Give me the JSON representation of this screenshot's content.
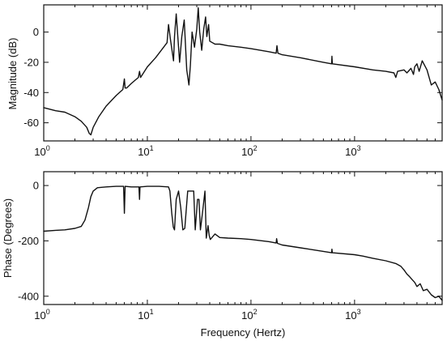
{
  "chart_data": [
    {
      "type": "line",
      "title": "",
      "xlabel": "",
      "ylabel": "Magnitude  (dB)",
      "xscale": "log",
      "xlim": [
        1,
        7000
      ],
      "ylim": [
        -72,
        18
      ],
      "x_ticks": [
        1,
        10,
        100,
        1000
      ],
      "x_tick_labels": [
        {
          "base": "10",
          "exp": "0"
        },
        {
          "base": "10",
          "exp": "1"
        },
        {
          "base": "10",
          "exp": "2"
        },
        {
          "base": "10",
          "exp": "3"
        }
      ],
      "y_ticks": [
        0,
        -20,
        -40,
        -60
      ],
      "y_tick_labels": [
        "0",
        "-20",
        "-40",
        "-60"
      ],
      "grid": false,
      "series": [
        {
          "x": [
            1,
            1.3,
            1.6,
            2.0,
            2.3,
            2.6,
            2.75,
            2.85,
            3.0,
            3.4,
            4.0,
            5.0,
            5.8,
            6.0,
            6.1,
            6.3,
            7.0,
            8.2,
            8.4,
            8.6,
            10.0,
            12.0,
            14.0,
            15.5,
            16.0,
            16.7,
            17.3,
            17.9,
            18.3,
            19.0,
            20.0,
            20.5,
            21.5,
            22.7,
            24.0,
            25.2,
            26.0,
            27.0,
            28.5,
            30.0,
            31.0,
            32.0,
            33.5,
            35.0,
            36.5,
            37.5,
            39.0,
            40.0,
            45.0,
            50.0,
            60.0,
            80.0,
            100,
            150,
            175,
            178,
            182,
            200,
            300,
            500,
            600,
            605,
            610,
            1000,
            1500,
            2000,
            2400,
            2500,
            2600,
            3000,
            3200,
            3500,
            3700,
            3800,
            4000,
            4200,
            4500,
            5000,
            5500,
            6000,
            6500,
            7000
          ],
          "y": [
            -50,
            -52,
            -53,
            -56,
            -59,
            -63,
            -67,
            -68,
            -63,
            -56,
            -49,
            -42,
            -38,
            -31,
            -37,
            -37,
            -34,
            -30,
            -26,
            -30,
            -23,
            -17,
            -11,
            -7,
            5,
            -5,
            -12,
            -19,
            -3,
            12,
            -10,
            -20,
            -3,
            8,
            -25,
            -35,
            -22,
            0,
            -10,
            2,
            16,
            0,
            -12,
            2,
            10,
            -3,
            5,
            -6,
            -8,
            -8,
            -9,
            -10,
            -11,
            -13,
            -14,
            -9,
            -14,
            -15,
            -17,
            -20,
            -21,
            -16,
            -21,
            -23,
            -25,
            -26,
            -27,
            -30,
            -26,
            -25,
            -27,
            -24,
            -28,
            -23,
            -21,
            -26,
            -19,
            -25,
            -35,
            -33,
            -38,
            -45
          ]
        }
      ]
    },
    {
      "type": "line",
      "title": "",
      "xlabel": "Frequency  (Hertz)",
      "ylabel": "Phase  (Degrees)",
      "xscale": "log",
      "xlim": [
        1,
        7000
      ],
      "ylim": [
        -430,
        50
      ],
      "x_ticks": [
        1,
        10,
        100,
        1000
      ],
      "x_tick_labels": [
        {
          "base": "10",
          "exp": "0"
        },
        {
          "base": "10",
          "exp": "1"
        },
        {
          "base": "10",
          "exp": "2"
        },
        {
          "base": "10",
          "exp": "3"
        }
      ],
      "y_ticks": [
        0,
        -200,
        -400
      ],
      "y_tick_labels": [
        "0",
        "-200",
        "-400"
      ],
      "grid": false,
      "series": [
        {
          "x": [
            1,
            1.3,
            1.6,
            2.0,
            2.3,
            2.5,
            2.7,
            2.85,
            3.0,
            3.3,
            4.0,
            5.0,
            5.9,
            6.0,
            6.1,
            7.0,
            8.3,
            8.4,
            8.5,
            10.0,
            13.0,
            16.0,
            16.5,
            17.2,
            17.8,
            18.3,
            19.0,
            20.0,
            21.0,
            22.0,
            23.0,
            24.5,
            25.5,
            26.5,
            28.0,
            29.0,
            30.5,
            31.5,
            32.5,
            34.0,
            36.0,
            37.0,
            38.5,
            39.5,
            40.5,
            45.0,
            50.0,
            60.0,
            80.0,
            100,
            150,
            175,
            177,
            180,
            200,
            300,
            500,
            600,
            605,
            610,
            1000,
            1200,
            1500,
            2000,
            2500,
            2800,
            3000,
            3200,
            3400,
            3600,
            3800,
            4000,
            4300,
            4600,
            5000,
            5500,
            6000,
            6500,
            7000
          ],
          "y": [
            -165,
            -162,
            -160,
            -155,
            -148,
            -125,
            -80,
            -40,
            -20,
            -8,
            -5,
            -3,
            -3,
            -100,
            -3,
            -5,
            -5,
            -50,
            -5,
            -3,
            -3,
            -5,
            -20,
            -100,
            -150,
            -160,
            -50,
            -20,
            -80,
            -160,
            -155,
            -20,
            -20,
            -20,
            -20,
            -160,
            -50,
            -50,
            -160,
            -100,
            -20,
            -190,
            -145,
            -180,
            -195,
            -175,
            -188,
            -190,
            -192,
            -195,
            -203,
            -208,
            -192,
            -209,
            -215,
            -225,
            -238,
            -243,
            -230,
            -243,
            -250,
            -255,
            -263,
            -272,
            -282,
            -292,
            -305,
            -320,
            -330,
            -340,
            -350,
            -365,
            -355,
            -380,
            -375,
            -395,
            -405,
            -400,
            -415
          ]
        }
      ]
    }
  ]
}
